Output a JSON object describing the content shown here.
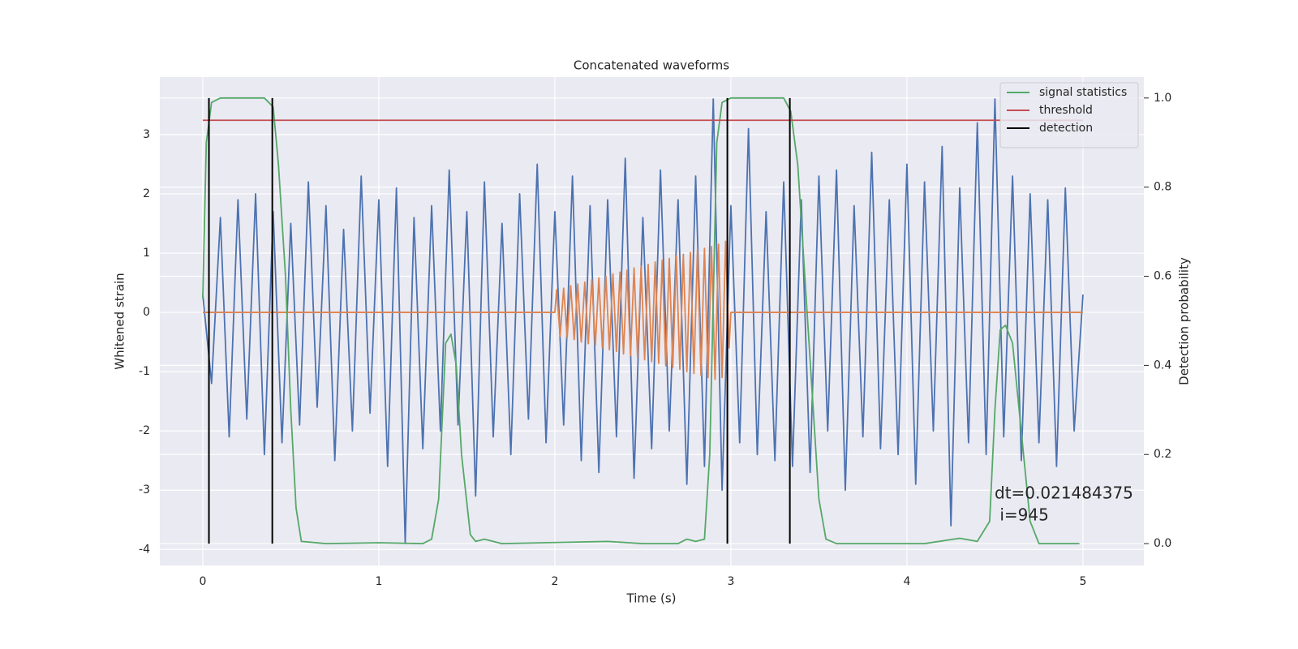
{
  "chart_data": {
    "type": "line",
    "title": "Concatenated waveforms",
    "xlabel": "Time (s)",
    "ylabel": "Whitened strain",
    "y2label": "Detection probability",
    "xlim": [
      -0.244,
      5.346
    ],
    "ylim": [
      -4.27,
      3.97
    ],
    "y2lim": [
      -0.049,
      1.047
    ],
    "xticks": [
      0,
      1,
      2,
      3,
      4,
      5
    ],
    "yticks": [
      -4,
      -3,
      -2,
      -1,
      0,
      1,
      2,
      3
    ],
    "y2ticks": [
      {
        "value": 0,
        "label": "0.0"
      },
      {
        "value": 0.2,
        "label": "0.2"
      },
      {
        "value": 0.4,
        "label": "0.4"
      },
      {
        "value": 0.6,
        "label": "0.6"
      },
      {
        "value": 0.8,
        "label": "0.8"
      },
      {
        "value": 1,
        "label": "1.0"
      }
    ],
    "grid": true,
    "legend": "upper right",
    "annotation": [
      "dt=0.021484375",
      " i=945"
    ],
    "series": [
      {
        "color": "#4c72b0",
        "x": [
          0,
          0.05,
          0.1,
          0.15,
          0.2,
          0.25,
          0.3,
          0.35,
          0.4,
          0.45,
          0.5,
          0.55,
          0.6,
          0.65,
          0.7,
          0.75,
          0.8,
          0.85,
          0.9,
          0.95,
          1,
          1.05,
          1.1,
          1.15,
          1.2,
          1.25,
          1.3,
          1.35,
          1.4,
          1.45,
          1.5,
          1.55,
          1.6,
          1.65,
          1.7,
          1.75,
          1.8,
          1.85,
          1.9,
          1.95,
          2,
          2.05,
          2.1,
          2.15,
          2.2,
          2.25,
          2.3,
          2.35,
          2.4,
          2.45,
          2.5,
          2.55,
          2.6,
          2.65,
          2.7,
          2.75,
          2.8,
          2.85,
          2.9,
          2.95,
          3,
          3.05,
          3.1,
          3.15,
          3.2,
          3.25,
          3.3,
          3.35,
          3.4,
          3.45,
          3.5,
          3.55,
          3.6,
          3.65,
          3.7,
          3.75,
          3.8,
          3.85,
          3.9,
          3.95,
          4,
          4.05,
          4.1,
          4.15,
          4.2,
          4.25,
          4.3,
          4.35,
          4.4,
          4.45,
          4.5,
          4.55,
          4.6,
          4.65,
          4.7,
          4.75,
          4.8,
          4.85,
          4.9,
          4.95,
          5
        ],
        "values": [
          0.3,
          -1.2,
          1.6,
          -2.1,
          1.9,
          -1.8,
          2.0,
          -2.4,
          1.7,
          -2.2,
          1.5,
          -1.9,
          2.2,
          -1.6,
          1.8,
          -2.5,
          1.4,
          -2.0,
          2.3,
          -1.7,
          1.9,
          -2.6,
          2.1,
          -3.9,
          1.6,
          -2.3,
          1.8,
          -2.0,
          2.4,
          -1.9,
          1.7,
          -3.1,
          2.2,
          -2.1,
          1.5,
          -2.4,
          2.0,
          -1.8,
          2.5,
          -2.2,
          1.7,
          -1.9,
          2.3,
          -2.5,
          1.8,
          -2.7,
          1.9,
          -2.1,
          2.6,
          -2.8,
          1.6,
          -2.3,
          2.4,
          -2.0,
          1.9,
          -2.9,
          2.3,
          -2.6,
          3.6,
          -3.0,
          1.8,
          -2.2,
          3.1,
          -2.4,
          1.7,
          -2.5,
          2.2,
          -2.6,
          1.9,
          -2.7,
          2.3,
          -2.0,
          2.4,
          -3.0,
          1.8,
          -2.1,
          2.7,
          -2.3,
          1.9,
          -2.4,
          2.5,
          -2.9,
          2.2,
          -2.0,
          2.8,
          -3.6,
          2.1,
          -2.2,
          3.2,
          -2.4,
          3.6,
          -2.1,
          2.3,
          -2.5,
          2.0,
          -2.2,
          1.9,
          -2.6,
          2.1,
          -2.0,
          0.3
        ]
      },
      {
        "color": "#dd8452",
        "x": [
          0,
          2.0,
          2.01,
          2.03,
          2.05,
          2.07,
          2.09,
          2.11,
          2.13,
          2.15,
          2.17,
          2.19,
          2.21,
          2.23,
          2.25,
          2.27,
          2.29,
          2.31,
          2.33,
          2.35,
          2.37,
          2.39,
          2.41,
          2.43,
          2.45,
          2.47,
          2.49,
          2.51,
          2.53,
          2.55,
          2.57,
          2.59,
          2.61,
          2.63,
          2.65,
          2.67,
          2.69,
          2.71,
          2.73,
          2.75,
          2.77,
          2.79,
          2.81,
          2.83,
          2.85,
          2.87,
          2.89,
          2.91,
          2.93,
          2.95,
          2.97,
          2.99,
          3.0,
          5
        ],
        "values": [
          0,
          0,
          0.38,
          -0.4,
          0.41,
          -0.43,
          0.45,
          -0.46,
          0.48,
          -0.5,
          0.51,
          -0.53,
          0.55,
          -0.56,
          0.58,
          -0.6,
          0.61,
          -0.63,
          0.65,
          -0.66,
          0.68,
          -0.7,
          0.71,
          -0.73,
          0.75,
          -0.76,
          0.78,
          -0.8,
          0.81,
          -0.83,
          0.85,
          -0.86,
          0.88,
          -0.9,
          0.91,
          -0.93,
          0.95,
          -0.96,
          0.98,
          -1.0,
          1.01,
          -1.03,
          1.05,
          -1.06,
          1.08,
          -1.1,
          1.11,
          -1.13,
          1.15,
          -1.1,
          1.2,
          -0.6,
          0,
          0
        ]
      },
      {
        "name": "signal statistics",
        "color": "#55a868",
        "axis": "y2",
        "x": [
          0,
          0.02,
          0.05,
          0.1,
          0.35,
          0.4,
          0.43,
          0.47,
          0.5,
          0.53,
          0.56,
          0.7,
          1.0,
          1.25,
          1.3,
          1.34,
          1.38,
          1.41,
          1.44,
          1.47,
          1.52,
          1.55,
          1.6,
          1.7,
          2.3,
          2.5,
          2.7,
          2.75,
          2.8,
          2.85,
          2.88,
          2.92,
          2.95,
          3.0,
          3.3,
          3.34,
          3.38,
          3.42,
          3.46,
          3.5,
          3.54,
          3.6,
          4.1,
          4.3,
          4.4,
          4.47,
          4.5,
          4.53,
          4.56,
          4.6,
          4.65,
          4.7,
          4.75,
          4.98
        ],
        "values": [
          0.55,
          0.9,
          0.99,
          1.0,
          1.0,
          0.98,
          0.85,
          0.6,
          0.3,
          0.08,
          0.005,
          0.0,
          0.002,
          0.0,
          0.01,
          0.1,
          0.45,
          0.47,
          0.4,
          0.2,
          0.02,
          0.005,
          0.01,
          0.0,
          0.005,
          0.0,
          0.0,
          0.01,
          0.005,
          0.01,
          0.2,
          0.9,
          0.99,
          1.0,
          1.0,
          0.97,
          0.85,
          0.6,
          0.35,
          0.1,
          0.01,
          0.0,
          0.0,
          0.012,
          0.005,
          0.05,
          0.3,
          0.48,
          0.49,
          0.45,
          0.25,
          0.05,
          0.0,
          0.0
        ]
      },
      {
        "name": "threshold",
        "color": "#c44e52",
        "axis": "y2",
        "x": [
          0,
          5
        ],
        "values": [
          0.95,
          0.95
        ]
      },
      {
        "name": "detection",
        "color": "#000000",
        "axis": "y2",
        "kind": "vline",
        "x": [
          0.035,
          0.395,
          2.98,
          3.335
        ],
        "ymin": 0,
        "ymax": 1
      }
    ]
  }
}
